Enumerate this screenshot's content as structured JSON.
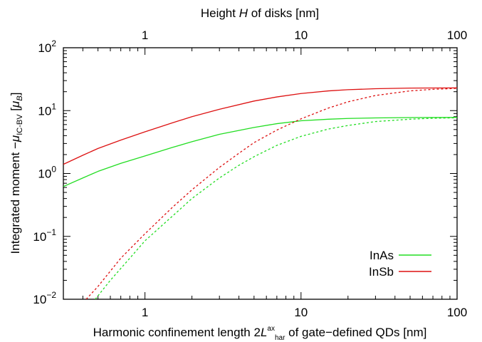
{
  "chart_data": {
    "type": "line",
    "xscale": "log",
    "yscale": "log",
    "xlim": [
      0.3,
      100
    ],
    "ylim": [
      0.01,
      100
    ],
    "xlabel": {
      "prefix": "Harmonic confinement length 2",
      "symbol": "L",
      "sup": "ax",
      "sub": "har",
      "suffix": " of gate−defined QDs [nm]"
    },
    "x2label": {
      "prefix": "Height ",
      "symbol": "H",
      "suffix": " of disks [nm]"
    },
    "ylabel": {
      "prefix": "Integrated moment −",
      "symbol": "μ",
      "sub": "IC-BV",
      "mid": " [",
      "symbol2": "μ",
      "sub2": "B",
      "suffix": "]"
    },
    "xticks": [
      {
        "value": 1,
        "label": "1"
      },
      {
        "value": 10,
        "label": "10"
      },
      {
        "value": 100,
        "label": "100"
      }
    ],
    "x2ticks": [
      {
        "value": 1,
        "label": "1"
      },
      {
        "value": 10,
        "label": "10"
      },
      {
        "value": 100,
        "label": "100"
      }
    ],
    "yticks": [
      {
        "value": 0.01,
        "base": "10",
        "exp": "−2"
      },
      {
        "value": 0.1,
        "base": "10",
        "exp": "−1"
      },
      {
        "value": 1,
        "base": "10",
        "exp": "0"
      },
      {
        "value": 10,
        "base": "10",
        "exp": "1"
      },
      {
        "value": 100,
        "base": "10",
        "exp": "2"
      }
    ],
    "legend_position": "bottom-right",
    "series": [
      {
        "name": "InAs",
        "color": "#22dd22",
        "style": "solid",
        "points": [
          [
            0.3,
            0.62
          ],
          [
            0.4,
            0.85
          ],
          [
            0.5,
            1.08
          ],
          [
            0.7,
            1.45
          ],
          [
            1,
            1.9
          ],
          [
            1.5,
            2.6
          ],
          [
            2,
            3.2
          ],
          [
            3,
            4.2
          ],
          [
            5,
            5.4
          ],
          [
            7,
            6.2
          ],
          [
            10,
            6.9
          ],
          [
            15,
            7.3
          ],
          [
            20,
            7.5
          ],
          [
            30,
            7.65
          ],
          [
            50,
            7.75
          ],
          [
            100,
            7.8
          ]
        ]
      },
      {
        "name": "InSb",
        "color": "#dd1111",
        "style": "solid",
        "points": [
          [
            0.3,
            1.4
          ],
          [
            0.4,
            1.95
          ],
          [
            0.5,
            2.5
          ],
          [
            0.7,
            3.4
          ],
          [
            1,
            4.6
          ],
          [
            1.5,
            6.4
          ],
          [
            2,
            8.0
          ],
          [
            3,
            10.5
          ],
          [
            5,
            14.2
          ],
          [
            7,
            16.5
          ],
          [
            10,
            18.7
          ],
          [
            15,
            20.6
          ],
          [
            20,
            21.5
          ],
          [
            30,
            22.3
          ],
          [
            50,
            22.8
          ],
          [
            100,
            23.0
          ]
        ]
      },
      {
        "name": "",
        "color": "#22dd22",
        "style": "dashed",
        "points": [
          [
            0.48,
            0.01
          ],
          [
            0.6,
            0.02
          ],
          [
            0.8,
            0.045
          ],
          [
            1,
            0.085
          ],
          [
            1.5,
            0.21
          ],
          [
            2,
            0.4
          ],
          [
            3,
            0.85
          ],
          [
            4,
            1.35
          ],
          [
            5,
            1.85
          ],
          [
            7,
            2.8
          ],
          [
            10,
            3.9
          ],
          [
            15,
            5.1
          ],
          [
            20,
            5.8
          ],
          [
            30,
            6.7
          ],
          [
            50,
            7.3
          ],
          [
            70,
            7.55
          ],
          [
            100,
            7.7
          ]
        ]
      },
      {
        "name": "",
        "color": "#dd1111",
        "style": "dashed",
        "points": [
          [
            0.42,
            0.01
          ],
          [
            0.5,
            0.016
          ],
          [
            0.7,
            0.045
          ],
          [
            1,
            0.11
          ],
          [
            1.5,
            0.29
          ],
          [
            2,
            0.55
          ],
          [
            3,
            1.25
          ],
          [
            4,
            2.1
          ],
          [
            5,
            3.1
          ],
          [
            7,
            4.9
          ],
          [
            10,
            7.4
          ],
          [
            15,
            11.0
          ],
          [
            20,
            13.8
          ],
          [
            30,
            17.4
          ],
          [
            50,
            20.6
          ],
          [
            70,
            21.8
          ],
          [
            100,
            22.6
          ]
        ]
      }
    ]
  }
}
